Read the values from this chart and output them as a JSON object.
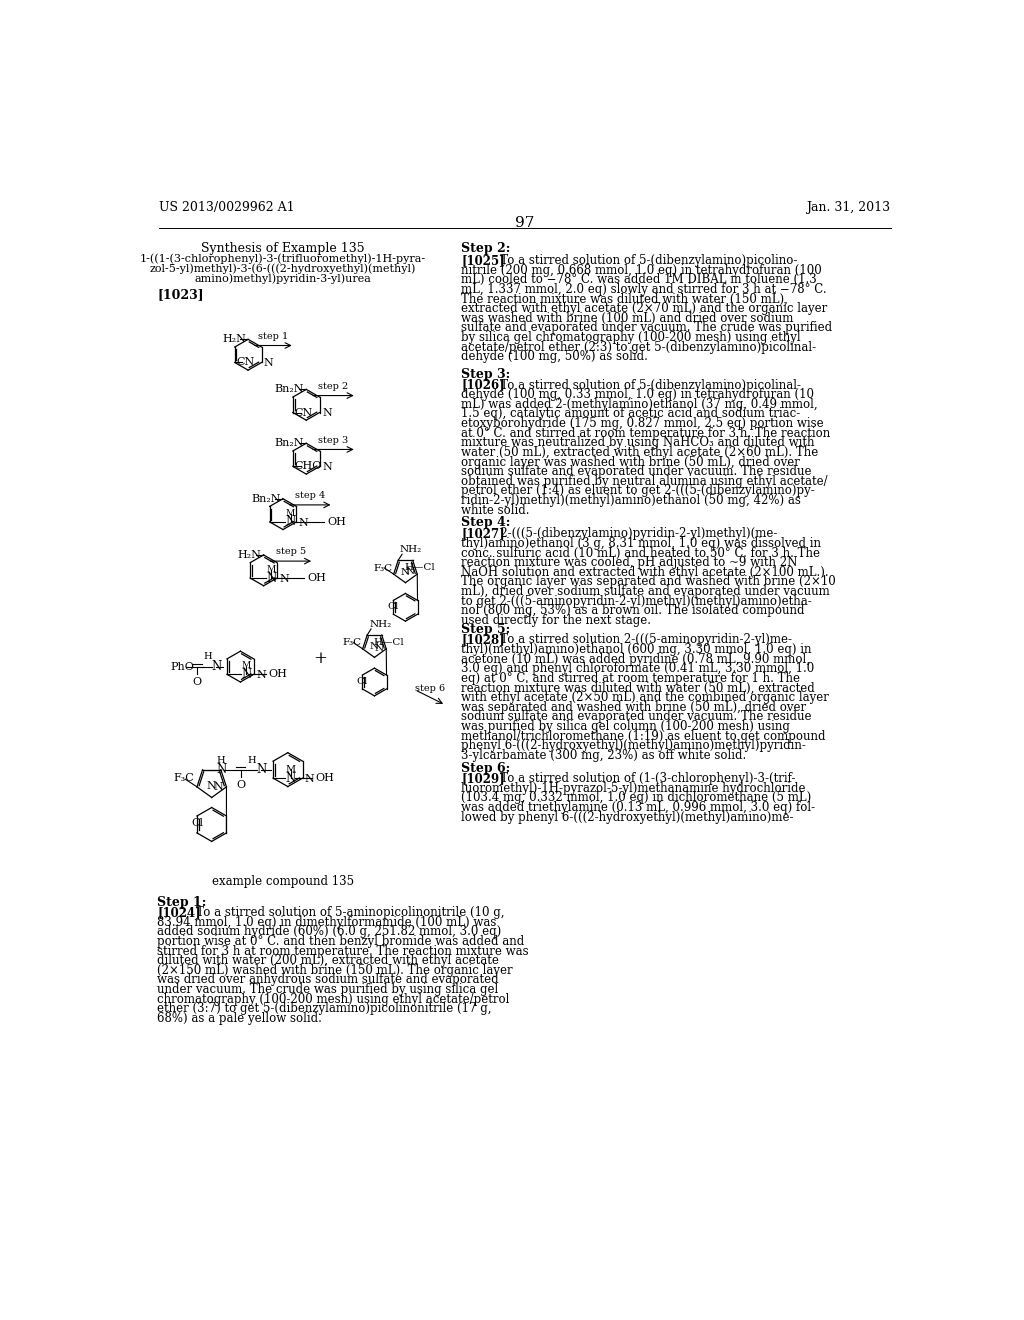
{
  "background_color": "#ffffff",
  "page_header_left": "US 2013/0029962 A1",
  "page_header_right": "Jan. 31, 2013",
  "page_number": "97"
}
